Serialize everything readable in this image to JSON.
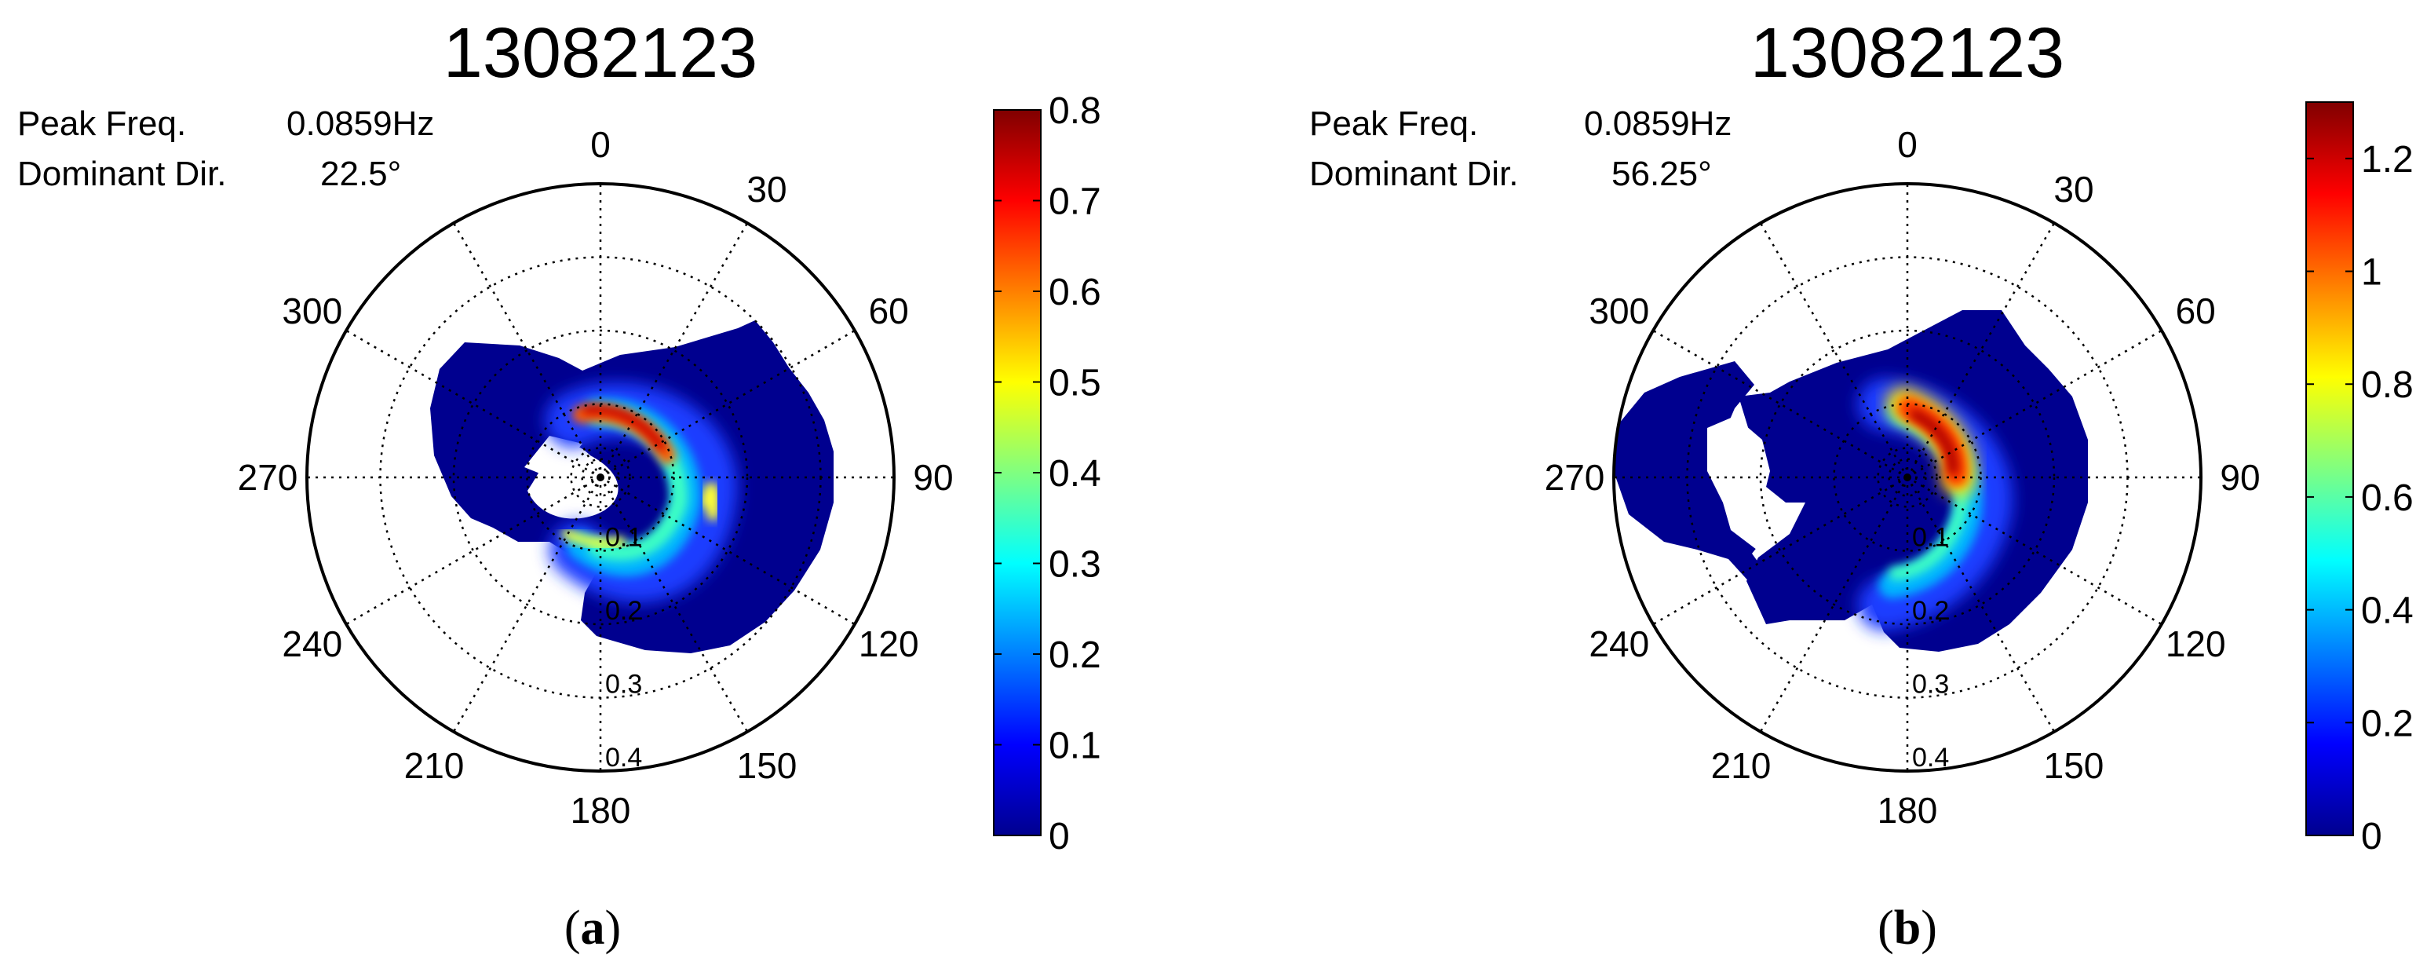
{
  "colors": {
    "colormap": [
      "#00008f",
      "#0000ff",
      "#0080ff",
      "#00ffff",
      "#80ff80",
      "#ffff00",
      "#ff8000",
      "#ff0000",
      "#800000"
    ],
    "grid": "#000000"
  },
  "chart_data": [
    {
      "type": "heatmap",
      "subtype": "polar-directional-spectrum",
      "title": "13082123",
      "caption_letter": "a",
      "info": {
        "peak_freq_label": "Peak Freq.",
        "peak_freq_value": "0.0859Hz",
        "dominant_dir_label": "Dominant Dir.",
        "dominant_dir_value": "22.5°"
      },
      "angle_ticks": [
        "0",
        "30",
        "60",
        "90",
        "120",
        "150",
        "180",
        "210",
        "240",
        "270",
        "300"
      ],
      "radial_ticks": [
        "0.1",
        "0.2",
        "0.3",
        "0.4"
      ],
      "radial_range": [
        0,
        0.4
      ],
      "colorbar": {
        "range": [
          0,
          0.8
        ],
        "ticks": [
          "0",
          "0.1",
          "0.2",
          "0.3",
          "0.4",
          "0.5",
          "0.6",
          "0.7",
          "0.8"
        ]
      },
      "grid": true,
      "peak": {
        "direction_deg": 22.5,
        "frequency_hz": 0.0859,
        "value": 0.8
      }
    },
    {
      "type": "heatmap",
      "subtype": "polar-directional-spectrum",
      "title": "13082123",
      "caption_letter": "b",
      "info": {
        "peak_freq_label": "Peak Freq.",
        "peak_freq_value": "0.0859Hz",
        "dominant_dir_label": "Dominant Dir.",
        "dominant_dir_value": "56.25°"
      },
      "angle_ticks": [
        "0",
        "30",
        "60",
        "90",
        "120",
        "150",
        "180",
        "210",
        "240",
        "270",
        "300"
      ],
      "radial_ticks": [
        "0.1",
        "0.2",
        "0.3",
        "0.4"
      ],
      "radial_range": [
        0,
        0.4
      ],
      "colorbar": {
        "range": [
          0,
          1.3
        ],
        "ticks": [
          "0",
          "0.2",
          "0.4",
          "0.6",
          "0.8",
          "1",
          "1.2"
        ]
      },
      "grid": true,
      "peak": {
        "direction_deg": 56.25,
        "frequency_hz": 0.0859,
        "value": 1.3
      }
    }
  ]
}
